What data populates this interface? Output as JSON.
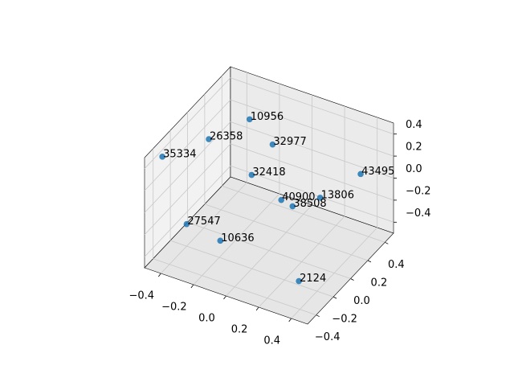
{
  "chart_data": {
    "type": "scatter3d",
    "x": [
      -0.23,
      -0.11,
      -0.38,
      -0.47,
      -0.17,
      0.33,
      -0.02,
      0.15,
      0.06,
      -0.4,
      -0.22,
      0.32
    ],
    "y": [
      0.21,
      0.25,
      0.02,
      -0.35,
      0.12,
      0.44,
      0.18,
      0.31,
      0.16,
      -0.2,
      -0.15,
      -0.26
    ],
    "z": [
      0.4,
      0.2,
      0.3,
      0.4,
      0.0,
      0.0,
      -0.2,
      -0.2,
      -0.2,
      -0.3,
      -0.4,
      -0.4
    ],
    "point_labels": [
      "10956",
      "32977",
      "26358",
      "35334",
      "32418",
      "43495",
      "40900",
      "13806",
      "38508",
      "27547",
      "10636",
      "2124"
    ],
    "color": "#1f77b4",
    "xlim": [
      -0.5,
      0.5
    ],
    "ylim": [
      -0.5,
      0.5
    ],
    "zlim": [
      -0.5,
      0.5
    ],
    "xticks": [
      {
        "value": -0.4,
        "label": "−0.4"
      },
      {
        "value": -0.2,
        "label": "−0.2"
      },
      {
        "value": 0.0,
        "label": "0.0"
      },
      0.2,
      0.4
    ],
    "yticks": [
      {
        "value": -0.4,
        "label": "−0.4"
      },
      {
        "value": -0.2,
        "label": "−0.2"
      },
      {
        "value": 0.0,
        "label": "0.0"
      },
      0.2,
      0.4
    ],
    "zticks": [
      {
        "value": -0.4,
        "label": "−0.4"
      },
      {
        "value": -0.2,
        "label": "−0.2"
      },
      {
        "value": 0.0,
        "label": "0.0"
      },
      0.2,
      0.4
    ],
    "grid": true
  }
}
